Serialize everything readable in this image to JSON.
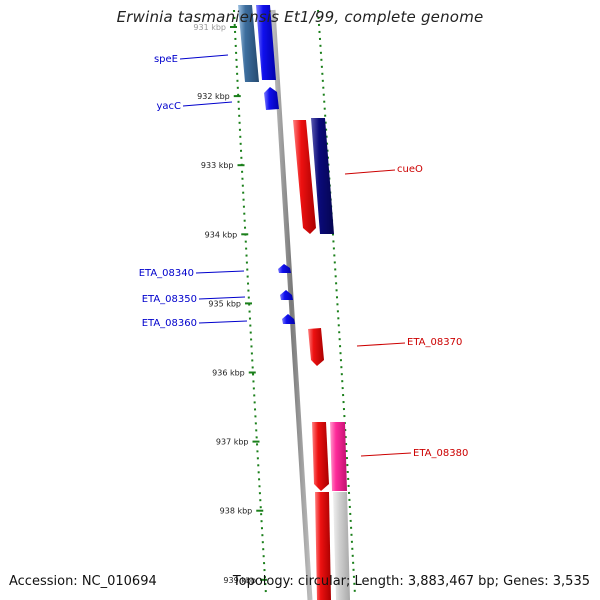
{
  "title": "Erwinia tasmaniensis Et1/99, complete genome",
  "accession_text": "Accession: NC_010694",
  "summary_text": "Topology: circular; Length: 3,883,467 bp; Genes: 3,535",
  "colors": {
    "backbone": "#8a8a8a",
    "tick": "#1a7f1a",
    "gc_dots": "#1a7f1a",
    "forward_label": "#0000cc",
    "reverse_label": "#cc0000",
    "blue": "#1010ee",
    "steelblue": "#3d6e9e",
    "red": "#ee1111",
    "navy": "#0a0a7a",
    "pink": "#ff2a9a",
    "gray": "#c8c8c8"
  },
  "ticks": [
    {
      "label": "931 kbp"
    },
    {
      "label": "932 kbp"
    },
    {
      "label": "933 kbp"
    },
    {
      "label": "934 kbp"
    },
    {
      "label": "935 kbp"
    },
    {
      "label": "936 kbp"
    },
    {
      "label": "937 kbp"
    },
    {
      "label": "938 kbp"
    },
    {
      "label": "939 kbp"
    }
  ],
  "genes": [
    {
      "label": "speE",
      "strand": "forward"
    },
    {
      "label": "yacC",
      "strand": "forward"
    },
    {
      "label": "cueO",
      "strand": "reverse"
    },
    {
      "label": "ETA_08340",
      "strand": "forward"
    },
    {
      "label": "ETA_08350",
      "strand": "forward"
    },
    {
      "label": "ETA_08360",
      "strand": "forward"
    },
    {
      "label": "ETA_08370",
      "strand": "reverse"
    },
    {
      "label": "ETA_08380",
      "strand": "reverse"
    }
  ]
}
